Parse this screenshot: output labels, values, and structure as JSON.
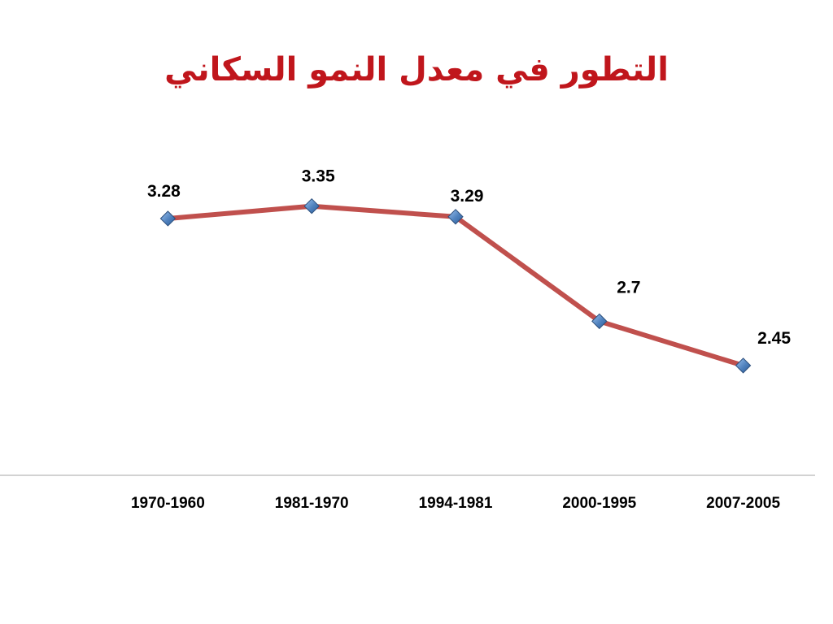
{
  "title": "التطور في معدل النمو السكاني",
  "chart_data": {
    "type": "line",
    "title": "التطور في معدل النمو السكاني",
    "categories": [
      "1970-1960",
      "1981-1970",
      "1994-1981",
      "2000-1995",
      "2007-2005"
    ],
    "series": [
      {
        "values": [
          3.28,
          3.35,
          3.29,
          2.7,
          2.45
        ]
      }
    ],
    "data_labels": [
      "3.28",
      "3.35",
      "3.29",
      "2.7",
      "2.45"
    ],
    "xlabel": "",
    "ylabel": "",
    "y_axis_visible": false,
    "grid": false,
    "legend": "none",
    "line_color": "#C0504D",
    "marker_color": "#4F81BD",
    "axis_color": "#A6A6A6",
    "title_color": "#C0161C"
  }
}
